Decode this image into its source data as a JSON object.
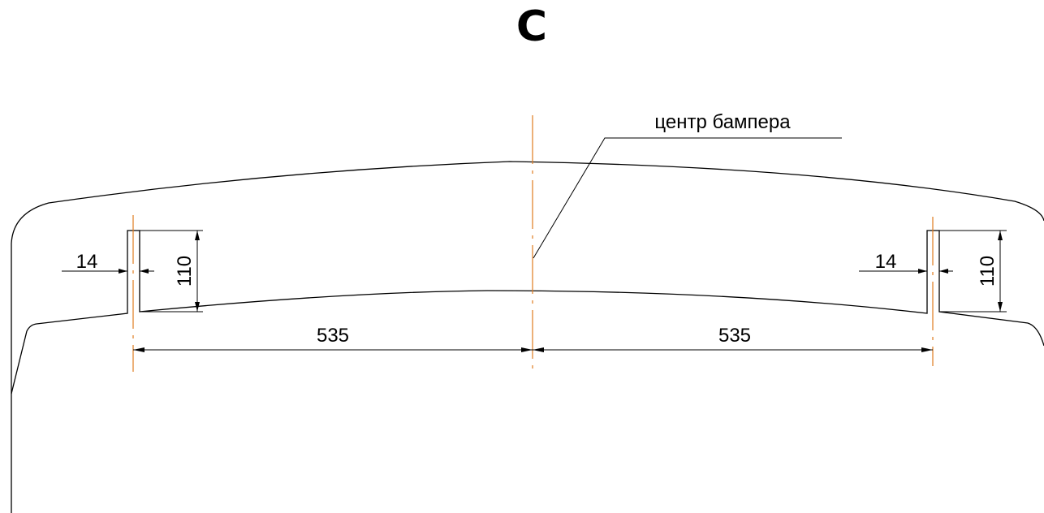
{
  "view_label": "C",
  "callout_label": "центр бампера",
  "dimensions": {
    "slot_width_left": "14",
    "slot_height_left": "110",
    "slot_width_right": "14",
    "slot_height_right": "110",
    "offset_left": "535",
    "offset_right": "535"
  },
  "colors": {
    "line": "#000000",
    "centerline": "#e07b1e"
  }
}
